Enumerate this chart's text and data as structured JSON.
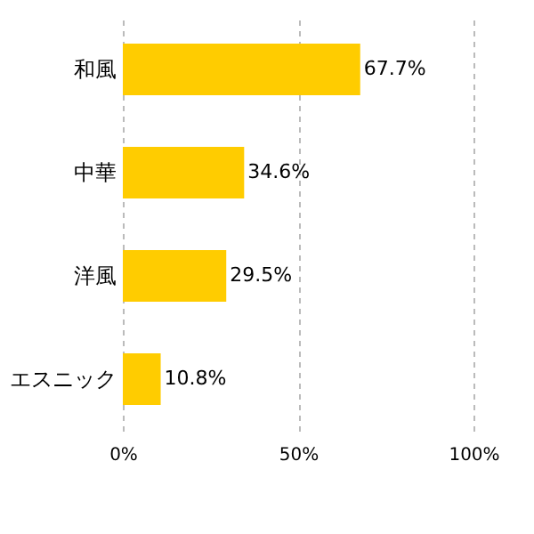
{
  "chart_data": {
    "type": "bar",
    "orientation": "horizontal",
    "categories": [
      "和風",
      "中華",
      "洋風",
      "エスニック"
    ],
    "values": [
      67.7,
      34.6,
      29.5,
      10.8
    ],
    "value_labels": [
      "67.7%",
      "34.6%",
      "29.5%",
      "10.8%"
    ],
    "color": "#ffcc00",
    "xlim": [
      0,
      100
    ],
    "xticks": [
      {
        "value": 0,
        "label": "0%"
      },
      {
        "value": 50,
        "label": "50%"
      },
      {
        "value": 100,
        "label": "100%"
      }
    ],
    "grid": "x"
  }
}
